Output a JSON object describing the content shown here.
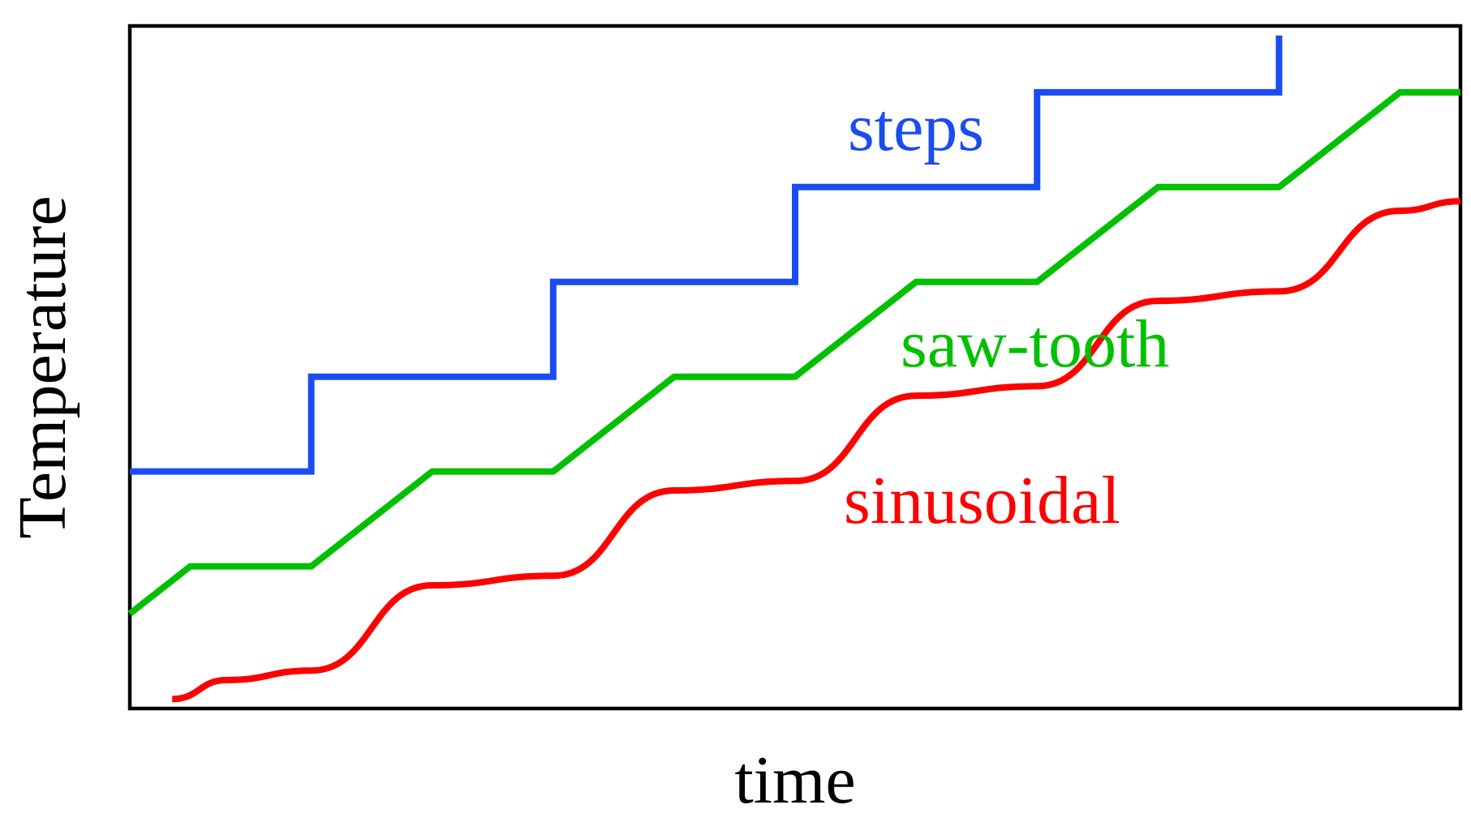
{
  "chart_data": {
    "type": "line",
    "title": "",
    "xlabel": "time",
    "ylabel": "Temperature",
    "xlim": [
      0,
      11
    ],
    "ylim": [
      0,
      14.4
    ],
    "grid": false,
    "ticks": false,
    "legend": "none (series labelled inline)",
    "series": [
      {
        "name": "steps",
        "color": "#1a4cf0",
        "shape": "steps",
        "x": [
          0,
          1.5,
          1.5,
          3.5,
          3.5,
          5.5,
          5.5,
          7.5,
          7.5,
          9.5,
          9.5
        ],
        "y": [
          5,
          5,
          7,
          7,
          9,
          9,
          11,
          11,
          13,
          13,
          14.2
        ]
      },
      {
        "name": "saw-tooth",
        "color": "#00c000",
        "shape": "polyline",
        "x": [
          0,
          0.5,
          1.5,
          2.5,
          3.5,
          4.5,
          5.5,
          6.5,
          7.5,
          8.5,
          9.5,
          10.5,
          11
        ],
        "y": [
          2,
          3,
          3,
          5,
          5,
          7,
          7,
          9,
          9,
          11,
          11,
          13,
          13
        ]
      },
      {
        "name": "sinusoidal",
        "color": "#ff0000",
        "shape": "smooth",
        "x": [
          0.35,
          0.8,
          1.5,
          2.5,
          3.5,
          4.5,
          5.5,
          6.5,
          7.5,
          8.5,
          9.5,
          10.5,
          11
        ],
        "y": [
          0.2,
          0.6,
          0.8,
          2.6,
          2.8,
          4.6,
          4.8,
          6.6,
          6.8,
          8.6,
          8.8,
          10.5,
          10.7
        ]
      }
    ]
  }
}
